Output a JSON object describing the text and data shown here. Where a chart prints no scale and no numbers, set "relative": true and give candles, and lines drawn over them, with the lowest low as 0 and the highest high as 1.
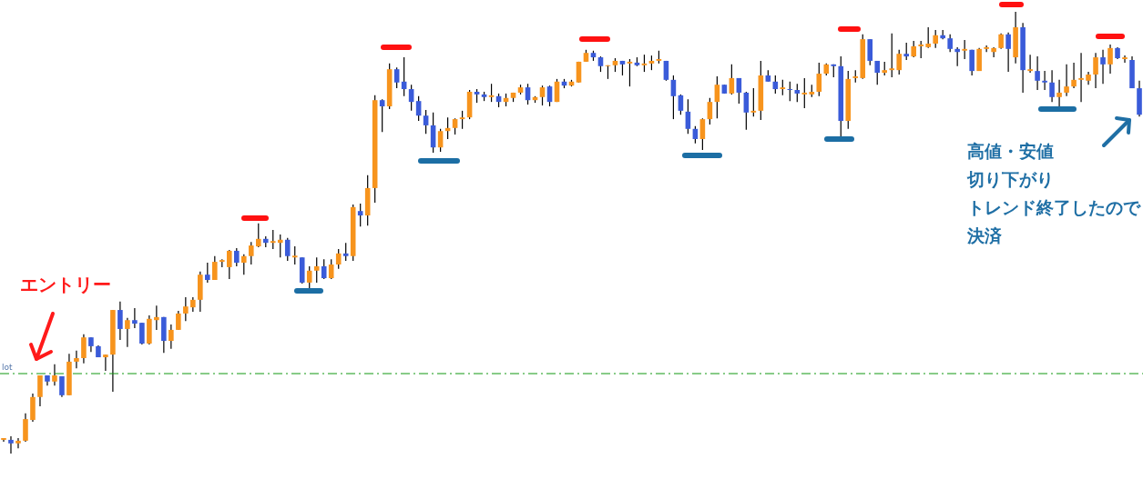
{
  "chart_data": {
    "type": "candlestick",
    "relative": true,
    "tick_labels": false,
    "categories": [
      null,
      null,
      null,
      null,
      null,
      null,
      null,
      null,
      null,
      null,
      null,
      null,
      null,
      null,
      null,
      null,
      null,
      null,
      null,
      null,
      null,
      null,
      null,
      null,
      null,
      null,
      null,
      null,
      null,
      null,
      null,
      null,
      null,
      null,
      null,
      null,
      null,
      null,
      null,
      null,
      null,
      null,
      null,
      null,
      null,
      null,
      null,
      null,
      null,
      null,
      null,
      null,
      null,
      null,
      null,
      null,
      null,
      null,
      null,
      null,
      null,
      null,
      null,
      null,
      null,
      null,
      null,
      null,
      null,
      null,
      null,
      null,
      null,
      null,
      null,
      null,
      null,
      null,
      null,
      null,
      null,
      null,
      null,
      null,
      null,
      null,
      null,
      null,
      null,
      null,
      null,
      null,
      null,
      null,
      null,
      null,
      null,
      null,
      null,
      null,
      null,
      null,
      null,
      null,
      null,
      null,
      null,
      null,
      null,
      null,
      null,
      null,
      null,
      null,
      null,
      null,
      null,
      null,
      null,
      null,
      null,
      null,
      null,
      null,
      null,
      null,
      null,
      null,
      null,
      null,
      null,
      null,
      null,
      null,
      null,
      null,
      null,
      null,
      null,
      null,
      null,
      null,
      null,
      null,
      null,
      null,
      null,
      null,
      null,
      null,
      null,
      null,
      null,
      null,
      null,
      null,
      null
    ],
    "ohlc": [
      [
        0.031,
        0.035,
        0.027,
        0.035
      ],
      [
        0.031,
        0.039,
        0,
        0.023
      ],
      [
        0.023,
        0.035,
        0.012,
        0.029
      ],
      [
        0.029,
        0.091,
        0.027,
        0.078
      ],
      [
        0.076,
        0.136,
        0.072,
        0.128
      ],
      [
        0.128,
        0.177,
        0.107,
        0.177
      ],
      [
        0.177,
        0.177,
        0.154,
        0.163
      ],
      [
        0.163,
        0.202,
        0.154,
        0.177
      ],
      [
        0.175,
        0.175,
        0.128,
        0.132
      ],
      [
        0.132,
        0.226,
        0.132,
        0.208
      ],
      [
        0.208,
        0.233,
        0.193,
        0.216
      ],
      [
        0.216,
        0.27,
        0.204,
        0.263
      ],
      [
        0.263,
        0.263,
        0.23,
        0.243
      ],
      [
        0.243,
        0.245,
        0.218,
        0.218
      ],
      [
        0.218,
        0.224,
        0.187,
        0.224
      ],
      [
        0.224,
        0.325,
        0.14,
        0.325
      ],
      [
        0.325,
        0.344,
        0.257,
        0.282
      ],
      [
        0.282,
        0.307,
        0.241,
        0.302
      ],
      [
        0.302,
        0.329,
        0.284,
        0.294
      ],
      [
        0.296,
        0.296,
        0.247,
        0.249
      ],
      [
        0.249,
        0.313,
        0.247,
        0.305
      ],
      [
        0.302,
        0.335,
        0.28,
        0.309
      ],
      [
        0.309,
        0.309,
        0.228,
        0.255
      ],
      [
        0.255,
        0.292,
        0.237,
        0.28
      ],
      [
        0.28,
        0.323,
        0.28,
        0.317
      ],
      [
        0.317,
        0.354,
        0.3,
        0.333
      ],
      [
        0.331,
        0.354,
        0.321,
        0.348
      ],
      [
        0.348,
        0.412,
        0.321,
        0.405
      ],
      [
        0.405,
        0.432,
        0.387,
        0.393
      ],
      [
        0.393,
        0.447,
        0.393,
        0.434
      ],
      [
        0.434,
        0.44,
        0.422,
        0.438
      ],
      [
        0.422,
        0.461,
        0.395,
        0.459
      ],
      [
        0.459,
        0.465,
        0.424,
        0.432
      ],
      [
        0.432,
        0.451,
        0.405,
        0.447
      ],
      [
        0.447,
        0.479,
        0.428,
        0.471
      ],
      [
        0.469,
        0.521,
        0.467,
        0.486
      ],
      [
        0.486,
        0.492,
        0.467,
        0.477
      ],
      [
        0.477,
        0.506,
        0.463,
        0.481
      ],
      [
        0.477,
        0.496,
        0.444,
        0.484
      ],
      [
        0.484,
        0.488,
        0.436,
        0.447
      ],
      [
        0.444,
        0.469,
        0.428,
        0.448
      ],
      [
        0.444,
        0.444,
        0.385,
        0.387
      ],
      [
        0.387,
        0.424,
        0.374,
        0.414
      ],
      [
        0.414,
        0.444,
        0.387,
        0.424
      ],
      [
        0.424,
        0.44,
        0.395,
        0.397
      ],
      [
        0.397,
        0.44,
        0.395,
        0.428
      ],
      [
        0.428,
        0.463,
        0.418,
        0.453
      ],
      [
        0.453,
        0.477,
        0.436,
        0.447
      ],
      [
        0.447,
        0.564,
        0.436,
        0.558
      ],
      [
        0.549,
        0.566,
        0.514,
        0.539
      ],
      [
        0.539,
        0.63,
        0.516,
        0.601
      ],
      [
        0.601,
        0.811,
        0.568,
        0.8
      ],
      [
        0.8,
        0.802,
        0.728,
        0.786
      ],
      [
        0.786,
        0.883,
        0.78,
        0.87
      ],
      [
        0.87,
        0.874,
        0.827,
        0.84
      ],
      [
        0.842,
        0.897,
        0.809,
        0.825
      ],
      [
        0.825,
        0.835,
        0.776,
        0.796
      ],
      [
        0.798,
        0.809,
        0.753,
        0.765
      ],
      [
        0.765,
        0.778,
        0.724,
        0.743
      ],
      [
        0.743,
        0.772,
        0.681,
        0.693
      ],
      [
        0.693,
        0.735,
        0.683,
        0.73
      ],
      [
        0.73,
        0.761,
        0.712,
        0.737
      ],
      [
        0.737,
        0.759,
        0.722,
        0.757
      ],
      [
        0.757,
        0.776,
        0.735,
        0.761
      ],
      [
        0.761,
        0.823,
        0.757,
        0.819
      ],
      [
        0.819,
        0.825,
        0.794,
        0.813
      ],
      [
        0.813,
        0.819,
        0.798,
        0.807
      ],
      [
        0.807,
        0.837,
        0.796,
        0.811
      ],
      [
        0.809,
        0.815,
        0.784,
        0.796
      ],
      [
        0.796,
        0.815,
        0.786,
        0.805
      ],
      [
        0.805,
        0.817,
        0.796,
        0.817
      ],
      [
        0.817,
        0.835,
        0.813,
        0.829
      ],
      [
        0.829,
        0.837,
        0.79,
        0.8
      ],
      [
        0.8,
        0.809,
        0.794,
        0.807
      ],
      [
        0.807,
        0.833,
        0.788,
        0.829
      ],
      [
        0.831,
        0.833,
        0.786,
        0.796
      ],
      [
        0.796,
        0.848,
        0.796,
        0.842
      ],
      [
        0.842,
        0.848,
        0.827,
        0.833
      ],
      [
        0.833,
        0.846,
        0.831,
        0.842
      ],
      [
        0.84,
        0.887,
        0.84,
        0.887
      ],
      [
        0.887,
        0.914,
        0.887,
        0.907
      ],
      [
        0.907,
        0.912,
        0.889,
        0.897
      ],
      [
        0.897,
        0.899,
        0.864,
        0.877
      ],
      [
        0.877,
        0.879,
        0.848,
        0.879
      ],
      [
        0.879,
        0.895,
        0.864,
        0.889
      ],
      [
        0.889,
        0.889,
        0.856,
        0.881
      ],
      [
        0.883,
        0.893,
        0.831,
        0.887
      ],
      [
        0.885,
        0.897,
        0.877,
        0.879
      ],
      [
        0.879,
        0.903,
        0.864,
        0.883
      ],
      [
        0.883,
        0.901,
        0.868,
        0.889
      ],
      [
        0.889,
        0.912,
        0.883,
        0.893
      ],
      [
        0.889,
        0.889,
        0.844,
        0.846
      ],
      [
        0.846,
        0.856,
        0.757,
        0.809
      ],
      [
        0.811,
        0.813,
        0.767,
        0.776
      ],
      [
        0.774,
        0.802,
        0.724,
        0.735
      ],
      [
        0.735,
        0.741,
        0.702,
        0.712
      ],
      [
        0.712,
        0.759,
        0.687,
        0.757
      ],
      [
        0.757,
        0.805,
        0.745,
        0.796
      ],
      [
        0.796,
        0.854,
        0.759,
        0.835
      ],
      [
        0.835,
        0.835,
        0.815,
        0.815
      ],
      [
        0.815,
        0.881,
        0.813,
        0.85
      ],
      [
        0.85,
        0.85,
        0.792,
        0.817
      ],
      [
        0.817,
        0.819,
        0.733,
        0.772
      ],
      [
        0.772,
        0.827,
        0.763,
        0.776
      ],
      [
        0.776,
        0.889,
        0.755,
        0.856
      ],
      [
        0.856,
        0.868,
        0.842,
        0.842
      ],
      [
        0.842,
        0.856,
        0.815,
        0.825
      ],
      [
        0.825,
        0.846,
        0.811,
        0.829
      ],
      [
        0.825,
        0.842,
        0.798,
        0.823
      ],
      [
        0.823,
        0.837,
        0.796,
        0.815
      ],
      [
        0.813,
        0.85,
        0.782,
        0.817
      ],
      [
        0.813,
        0.835,
        0.807,
        0.819
      ],
      [
        0.819,
        0.885,
        0.809,
        0.86
      ],
      [
        0.86,
        0.883,
        0.856,
        0.881
      ],
      [
        0.881,
        0.881,
        0.852,
        0.877
      ],
      [
        0.877,
        0.899,
        0.714,
        0.753
      ],
      [
        0.753,
        0.866,
        0.735,
        0.848
      ],
      [
        0.85,
        0.868,
        0.84,
        0.854
      ],
      [
        0.85,
        0.949,
        0.848,
        0.938
      ],
      [
        0.938,
        0.938,
        0.879,
        0.889
      ],
      [
        0.889,
        0.889,
        0.835,
        0.862
      ],
      [
        0.862,
        0.887,
        0.856,
        0.868
      ],
      [
        0.868,
        0.951,
        0.852,
        0.872
      ],
      [
        0.868,
        0.914,
        0.858,
        0.905
      ],
      [
        0.905,
        0.93,
        0.891,
        0.899
      ],
      [
        0.899,
        0.934,
        0.897,
        0.922
      ],
      [
        0.922,
        0.934,
        0.895,
        0.926
      ],
      [
        0.92,
        0.965,
        0.918,
        0.928
      ],
      [
        0.928,
        0.959,
        0.918,
        0.947
      ],
      [
        0.947,
        0.959,
        0.938,
        0.94
      ],
      [
        0.94,
        0.949,
        0.909,
        0.916
      ],
      [
        0.916,
        0.92,
        0.877,
        0.909
      ],
      [
        0.912,
        0.936,
        0.893,
        0.916
      ],
      [
        0.914,
        0.914,
        0.856,
        0.866
      ],
      [
        0.866,
        0.918,
        0.866,
        0.916
      ],
      [
        0.916,
        0.924,
        0.909,
        0.92
      ],
      [
        0.909,
        0.92,
        0.897,
        0.918
      ],
      [
        0.918,
        0.951,
        0.916,
        0.949
      ],
      [
        0.949,
        0.953,
        0.864,
        0.916
      ],
      [
        0.897,
        1,
        0.883,
        0.965
      ],
      [
        0.965,
        0.975,
        0.817,
        0.868
      ],
      [
        0.866,
        0.903,
        0.862,
        0.87
      ],
      [
        0.866,
        0.899,
        0.823,
        0.844
      ],
      [
        0.844,
        0.866,
        0.823,
        0.84
      ],
      [
        0.84,
        0.868,
        0.796,
        0.807
      ],
      [
        0.807,
        0.846,
        0.786,
        0.817
      ],
      [
        0.817,
        0.881,
        0.809,
        0.831
      ],
      [
        0.831,
        0.885,
        0.827,
        0.846
      ],
      [
        0.846,
        0.907,
        0.796,
        0.85
      ],
      [
        0.844,
        0.864,
        0.835,
        0.858
      ],
      [
        0.858,
        0.907,
        0.827,
        0.897
      ],
      [
        0.897,
        0.914,
        0.837,
        0.881
      ],
      [
        0.881,
        0.926,
        0.86,
        0.918
      ],
      [
        0.918,
        0.92,
        0.893,
        0.895
      ],
      [
        0.893,
        0.901,
        0.885,
        0.897
      ],
      [
        0.891,
        0.899,
        0.827,
        0.827
      ],
      [
        0.827,
        0.844,
        0.763,
        0.767
      ]
    ],
    "colors": [
      "#f7941d",
      "#3a5bd9",
      "#f7941d",
      "#f7941d",
      "#f7941d",
      "#f7941d",
      "#3a5bd9",
      "#f7941d",
      "#3a5bd9",
      "#f7941d",
      "#f7941d",
      "#f7941d",
      "#3a5bd9",
      "#3a5bd9",
      "#f7941d",
      "#f7941d",
      "#3a5bd9",
      "#f7941d",
      "#3a5bd9",
      "#3a5bd9",
      "#f7941d",
      "#f7941d",
      "#3a5bd9",
      "#f7941d",
      "#f7941d",
      "#f7941d",
      "#f7941d",
      "#f7941d",
      "#3a5bd9",
      "#f7941d",
      "#f7941d",
      "#f7941d",
      "#3a5bd9",
      "#f7941d",
      "#f7941d",
      "#f7941d",
      "#3a5bd9",
      "#f7941d",
      "#f7941d",
      "#3a5bd9",
      "#f7941d",
      "#3a5bd9",
      "#f7941d",
      "#f7941d",
      "#3a5bd9",
      "#f7941d",
      "#f7941d",
      "#3a5bd9",
      "#f7941d",
      "#3a5bd9",
      "#f7941d",
      "#f7941d",
      "#3a5bd9",
      "#f7941d",
      "#3a5bd9",
      "#3a5bd9",
      "#3a5bd9",
      "#3a5bd9",
      "#3a5bd9",
      "#3a5bd9",
      "#f7941d",
      "#f7941d",
      "#f7941d",
      "#f7941d",
      "#f7941d",
      "#3a5bd9",
      "#3a5bd9",
      "#f7941d",
      "#3a5bd9",
      "#f7941d",
      "#f7941d",
      "#f7941d",
      "#3a5bd9",
      "#f7941d",
      "#f7941d",
      "#3a5bd9",
      "#f7941d",
      "#3a5bd9",
      "#f7941d",
      "#f7941d",
      "#f7941d",
      "#3a5bd9",
      "#3a5bd9",
      "#f7941d",
      "#f7941d",
      "#3a5bd9",
      "#f7941d",
      "#3a5bd9",
      "#f7941d",
      "#f7941d",
      "#f7941d",
      "#3a5bd9",
      "#3a5bd9",
      "#3a5bd9",
      "#3a5bd9",
      "#3a5bd9",
      "#f7941d",
      "#f7941d",
      "#f7941d",
      "#3a5bd9",
      "#f7941d",
      "#3a5bd9",
      "#3a5bd9",
      "#f7941d",
      "#f7941d",
      "#3a5bd9",
      "#3a5bd9",
      "#f7941d",
      "#3a5bd9",
      "#3a5bd9",
      "#f7941d",
      "#f7941d",
      "#f7941d",
      "#f7941d",
      "#3a5bd9",
      "#3a5bd9",
      "#f7941d",
      "#f7941d",
      "#f7941d",
      "#3a5bd9",
      "#3a5bd9",
      "#f7941d",
      "#f7941d",
      "#f7941d",
      "#3a5bd9",
      "#f7941d",
      "#f7941d",
      "#f7941d",
      "#f7941d",
      "#3a5bd9",
      "#3a5bd9",
      "#3a5bd9",
      "#f7941d",
      "#3a5bd9",
      "#f7941d",
      "#f7941d",
      "#f7941d",
      "#f7941d",
      "#3a5bd9",
      "#f7941d",
      "#3a5bd9",
      "#f7941d",
      "#3a5bd9",
      "#3a5bd9",
      "#3a5bd9",
      "#f7941d",
      "#f7941d",
      "#f7941d",
      "#f7941d",
      "#f7941d",
      "#f7941d",
      "#3a5bd9",
      "#f7941d",
      "#3a5bd9",
      "#f7941d",
      "#3a5bd9",
      "#3a5bd9"
    ],
    "ref_lines": [
      {
        "axis": "y",
        "value": 0.181,
        "label": "lot",
        "color": "#119911",
        "line_style": "dashed"
      }
    ],
    "annotations": [
      "エントリー",
      "高値・安値",
      "切り下がり",
      "トレンド終了したので",
      "決済"
    ]
  }
}
